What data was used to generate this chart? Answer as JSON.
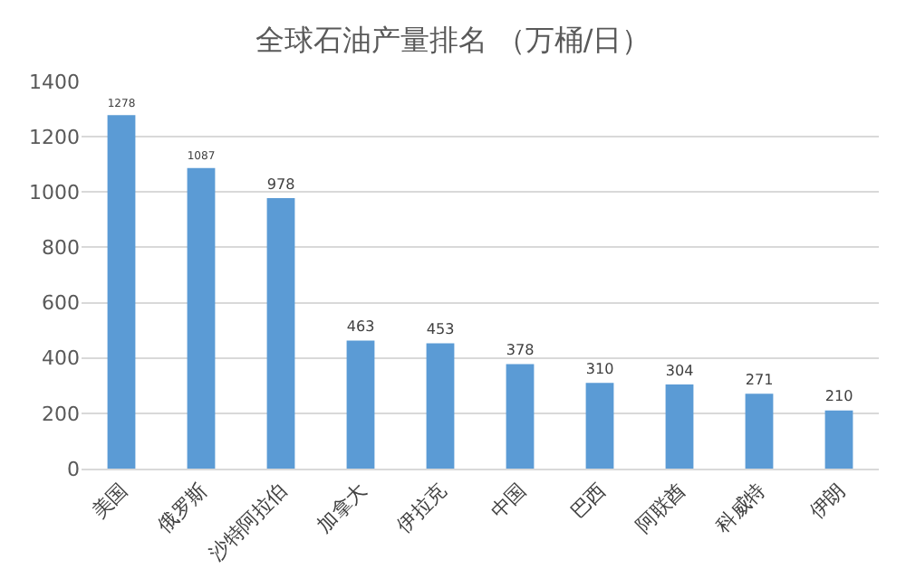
{
  "chart_data": {
    "type": "bar",
    "title": "全球石油产量排名 （万桶/日）",
    "categories": [
      "美国",
      "俄罗斯",
      "沙特阿拉伯",
      "加拿大",
      "伊拉克",
      "中国",
      "巴西",
      "阿联酋",
      "科威特",
      "伊朗"
    ],
    "values": [
      1278,
      1087,
      978,
      463,
      453,
      378,
      310,
      304,
      271,
      210
    ],
    "color": "#5b9bd5",
    "ylim": [
      0,
      1400
    ],
    "yticks": [
      0,
      200,
      400,
      600,
      800,
      1000,
      1200,
      1400
    ],
    "grid": "y",
    "data_labels": true
  }
}
